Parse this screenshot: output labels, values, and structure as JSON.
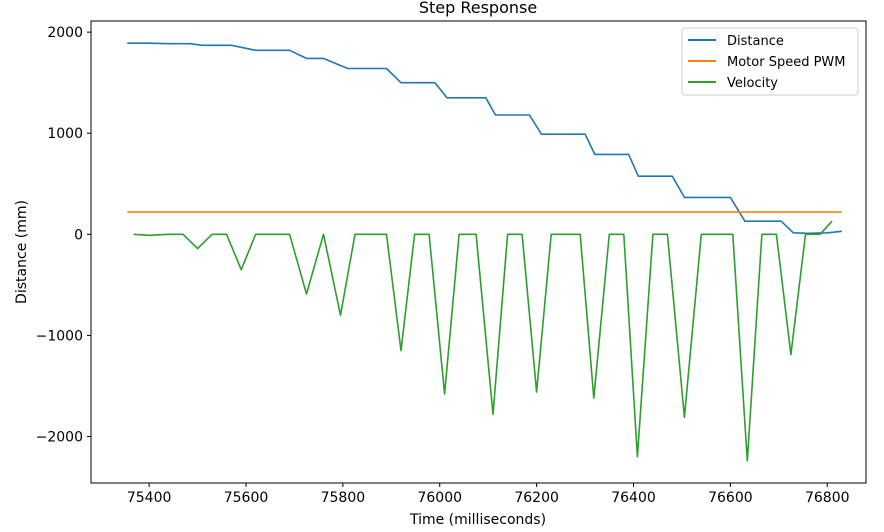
{
  "chart_data": {
    "type": "line",
    "title": "Step Response",
    "xlabel": "Time (milliseconds)",
    "ylabel": "Distance (mm)",
    "xlim": [
      75280,
      76880
    ],
    "ylim": [
      -2460,
      2110
    ],
    "xticks": [
      75400,
      75600,
      75800,
      76000,
      76200,
      76400,
      76600,
      76800
    ],
    "xtick_labels": [
      "75400",
      "75600",
      "75800",
      "76000",
      "76200",
      "76400",
      "76600",
      "76800"
    ],
    "yticks": [
      -2000,
      -1000,
      0,
      1000,
      2000
    ],
    "ytick_labels": [
      "−2000",
      "−1000",
      "0",
      "1000",
      "2000"
    ],
    "legend_position": "top-right",
    "grid": false,
    "series": [
      {
        "name": "Distance",
        "color": "#1f77b4",
        "x": [
          75355,
          75400,
          75440,
          75485,
          75510,
          75570,
          75600,
          75620,
          75690,
          75725,
          75760,
          75790,
          75810,
          75890,
          75920,
          75990,
          76015,
          76095,
          76115,
          76185,
          76210,
          76300,
          76320,
          76390,
          76410,
          76480,
          76505,
          76600,
          76630,
          76705,
          76730,
          76760,
          76800,
          76830
        ],
        "y": [
          1890,
          1890,
          1885,
          1885,
          1870,
          1870,
          1840,
          1820,
          1820,
          1740,
          1740,
          1680,
          1640,
          1640,
          1500,
          1500,
          1350,
          1350,
          1180,
          1180,
          990,
          990,
          790,
          790,
          575,
          575,
          365,
          365,
          130,
          130,
          15,
          10,
          15,
          30
        ]
      },
      {
        "name": "Motor Speed PWM",
        "color": "#ff7f0e",
        "x": [
          75355,
          76830
        ],
        "y": [
          220,
          220
        ]
      },
      {
        "name": "Velocity",
        "color": "#2ca02c",
        "x": [
          75368,
          75400,
          75440,
          75470,
          75500,
          75530,
          75560,
          75590,
          75620,
          75660,
          75690,
          75725,
          75760,
          75795,
          75825,
          75860,
          75890,
          75920,
          75948,
          75978,
          76010,
          76040,
          76075,
          76110,
          76140,
          76170,
          76200,
          76230,
          76258,
          76290,
          76318,
          76350,
          76380,
          76408,
          76440,
          76470,
          76505,
          76540,
          76575,
          76605,
          76635,
          76665,
          76695,
          76725,
          76755,
          76785,
          76810
        ],
        "y": [
          0,
          -10,
          0,
          0,
          -140,
          0,
          0,
          -350,
          0,
          0,
          0,
          -590,
          0,
          -800,
          0,
          0,
          0,
          -1150,
          0,
          0,
          -1580,
          0,
          0,
          -1780,
          0,
          0,
          -1560,
          0,
          0,
          0,
          -1620,
          0,
          0,
          -2200,
          0,
          0,
          -1810,
          0,
          0,
          0,
          -2240,
          0,
          0,
          -1190,
          0,
          0,
          130
        ]
      }
    ]
  }
}
